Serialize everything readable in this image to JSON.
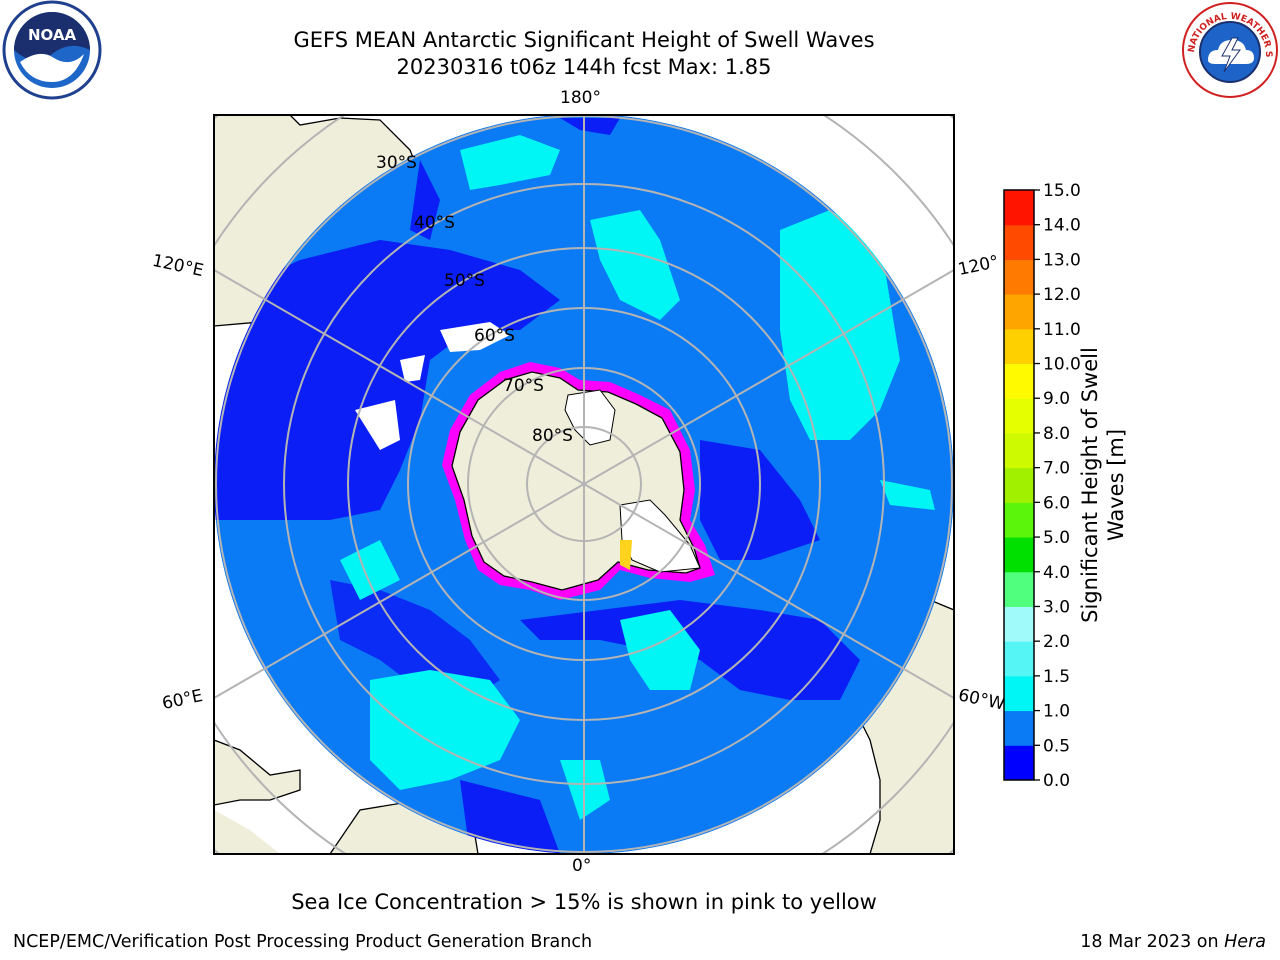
{
  "header": {
    "title_line1": "GEFS MEAN Antarctic Significant Height of Swell Waves",
    "title_line2": "20230316 t06z 144h fcst   Max: 1.85"
  },
  "logos": {
    "left": {
      "icon": "noaa-logo",
      "text": "NOAA"
    },
    "right": {
      "icon": "nws-logo",
      "text": "NATIONAL WEATHER SERVICE"
    }
  },
  "map": {
    "projection": "south-polar-stereographic",
    "lon_labels": {
      "top": "180°",
      "bottom": "0°",
      "left_upper": "120°E",
      "left_lower": "60°E",
      "right_upper": "120°",
      "right_lower": "60°W"
    },
    "lat_labels": [
      "30°S",
      "40°S",
      "50°S",
      "60°S",
      "70°S",
      "80°S"
    ],
    "colors": {
      "land": "#efeedb",
      "ocean_low": "#0a1ef5",
      "ocean_mid": "#0a7af5",
      "ocean_high": "#00f5f5",
      "ice": "#ff00ff",
      "ice_high": "#ffd21e",
      "grid": "#b4b4b4"
    }
  },
  "colorbar": {
    "label": "Significant Height of Swell Waves [m]",
    "label_line1": "Significant Height of Swell",
    "label_line2": "Waves [m]",
    "ticks": [
      "0.0",
      "0.5",
      "1.0",
      "1.5",
      "2.0",
      "3.0",
      "4.0",
      "5.0",
      "6.0",
      "7.0",
      "8.0",
      "9.0",
      "10.0",
      "11.0",
      "12.0",
      "13.0",
      "14.0",
      "15.0"
    ],
    "colors": [
      "#0000ff",
      "#0a7af5",
      "#00f5f5",
      "#55f5f5",
      "#a0fafa",
      "#50ff7e",
      "#00e000",
      "#5af50a",
      "#a0f000",
      "#cdfa00",
      "#e6ff00",
      "#fffa00",
      "#ffd000",
      "#ffa500",
      "#ff7a00",
      "#ff4a00",
      "#ff1400"
    ]
  },
  "note": "Sea Ice Concentration > 15% is shown in pink to yellow",
  "footer": {
    "left": "NCEP/EMC/Verification Post Processing Product Generation Branch",
    "right_prefix": "18 Mar 2023 on ",
    "right_host": "Hera"
  }
}
